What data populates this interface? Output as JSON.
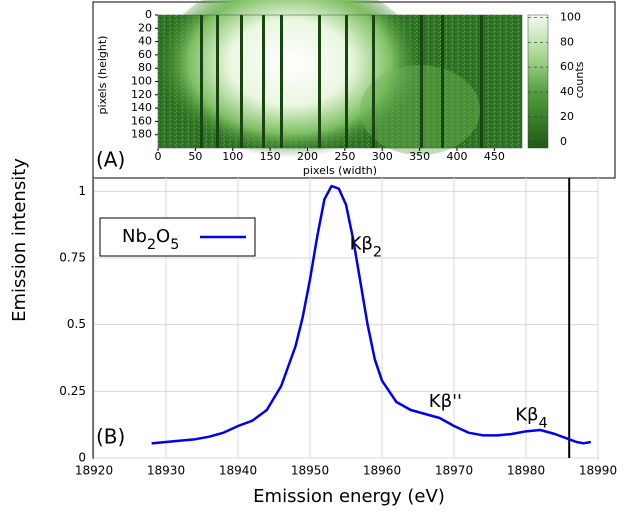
{
  "chart_data": [
    {
      "type": "image",
      "panel_label": "(A)",
      "xlabel": "pixels (width)",
      "ylabel": "pixels (height)",
      "xlim": [
        0,
        487
      ],
      "ylim": [
        0,
        200
      ],
      "xticks": [
        0,
        50,
        100,
        150,
        200,
        250,
        300,
        350,
        400,
        450
      ],
      "yticks": [
        0,
        20,
        40,
        60,
        80,
        100,
        120,
        140,
        160,
        180
      ],
      "colorbar": {
        "label": "counts",
        "lim": [
          -5,
          102
        ],
        "ticks": [
          0,
          20,
          40,
          60,
          80,
          100
        ]
      }
    },
    {
      "type": "line",
      "panel_label": "(B)",
      "xlabel": "Emission energy (eV)",
      "ylabel": "Emission intensity",
      "xlim": [
        18920,
        18990
      ],
      "ylim": [
        0,
        1.05
      ],
      "xticks": [
        18920,
        18930,
        18940,
        18950,
        18960,
        18970,
        18980,
        18990
      ],
      "yticks": [
        0,
        0.25,
        0.5,
        0.75,
        1
      ],
      "grid": true,
      "legend": "upper left",
      "x": [
        18928,
        18930,
        18932,
        18934,
        18936,
        18938,
        18940,
        18942,
        18944,
        18946,
        18948,
        18949,
        18950,
        18951,
        18952,
        18953,
        18954,
        18955,
        18956,
        18957,
        18958,
        18959,
        18960,
        18962,
        18964,
        18966,
        18968,
        18970,
        18972,
        18974,
        18976,
        18978,
        18980,
        18982,
        18984,
        18986,
        18987,
        18988,
        18989
      ],
      "series": [
        {
          "name": "Nb2O5",
          "color": "#0000ee",
          "values": [
            0.055,
            0.06,
            0.065,
            0.07,
            0.08,
            0.095,
            0.12,
            0.14,
            0.18,
            0.27,
            0.42,
            0.53,
            0.67,
            0.83,
            0.97,
            1.02,
            1.01,
            0.95,
            0.82,
            0.66,
            0.5,
            0.37,
            0.29,
            0.21,
            0.18,
            0.165,
            0.15,
            0.12,
            0.095,
            0.085,
            0.085,
            0.09,
            0.1,
            0.105,
            0.09,
            0.07,
            0.06,
            0.055,
            0.06
          ]
        }
      ],
      "vline": {
        "x": 18986,
        "color": "#000000"
      },
      "annotations": [
        {
          "text": "Kβ2",
          "x": 18955.5,
          "y": 0.8
        },
        {
          "text": "Kβ''",
          "x": 18966.5,
          "y": 0.21
        },
        {
          "text": "Kβ4",
          "x": 18978.5,
          "y": 0.16
        }
      ]
    }
  ]
}
